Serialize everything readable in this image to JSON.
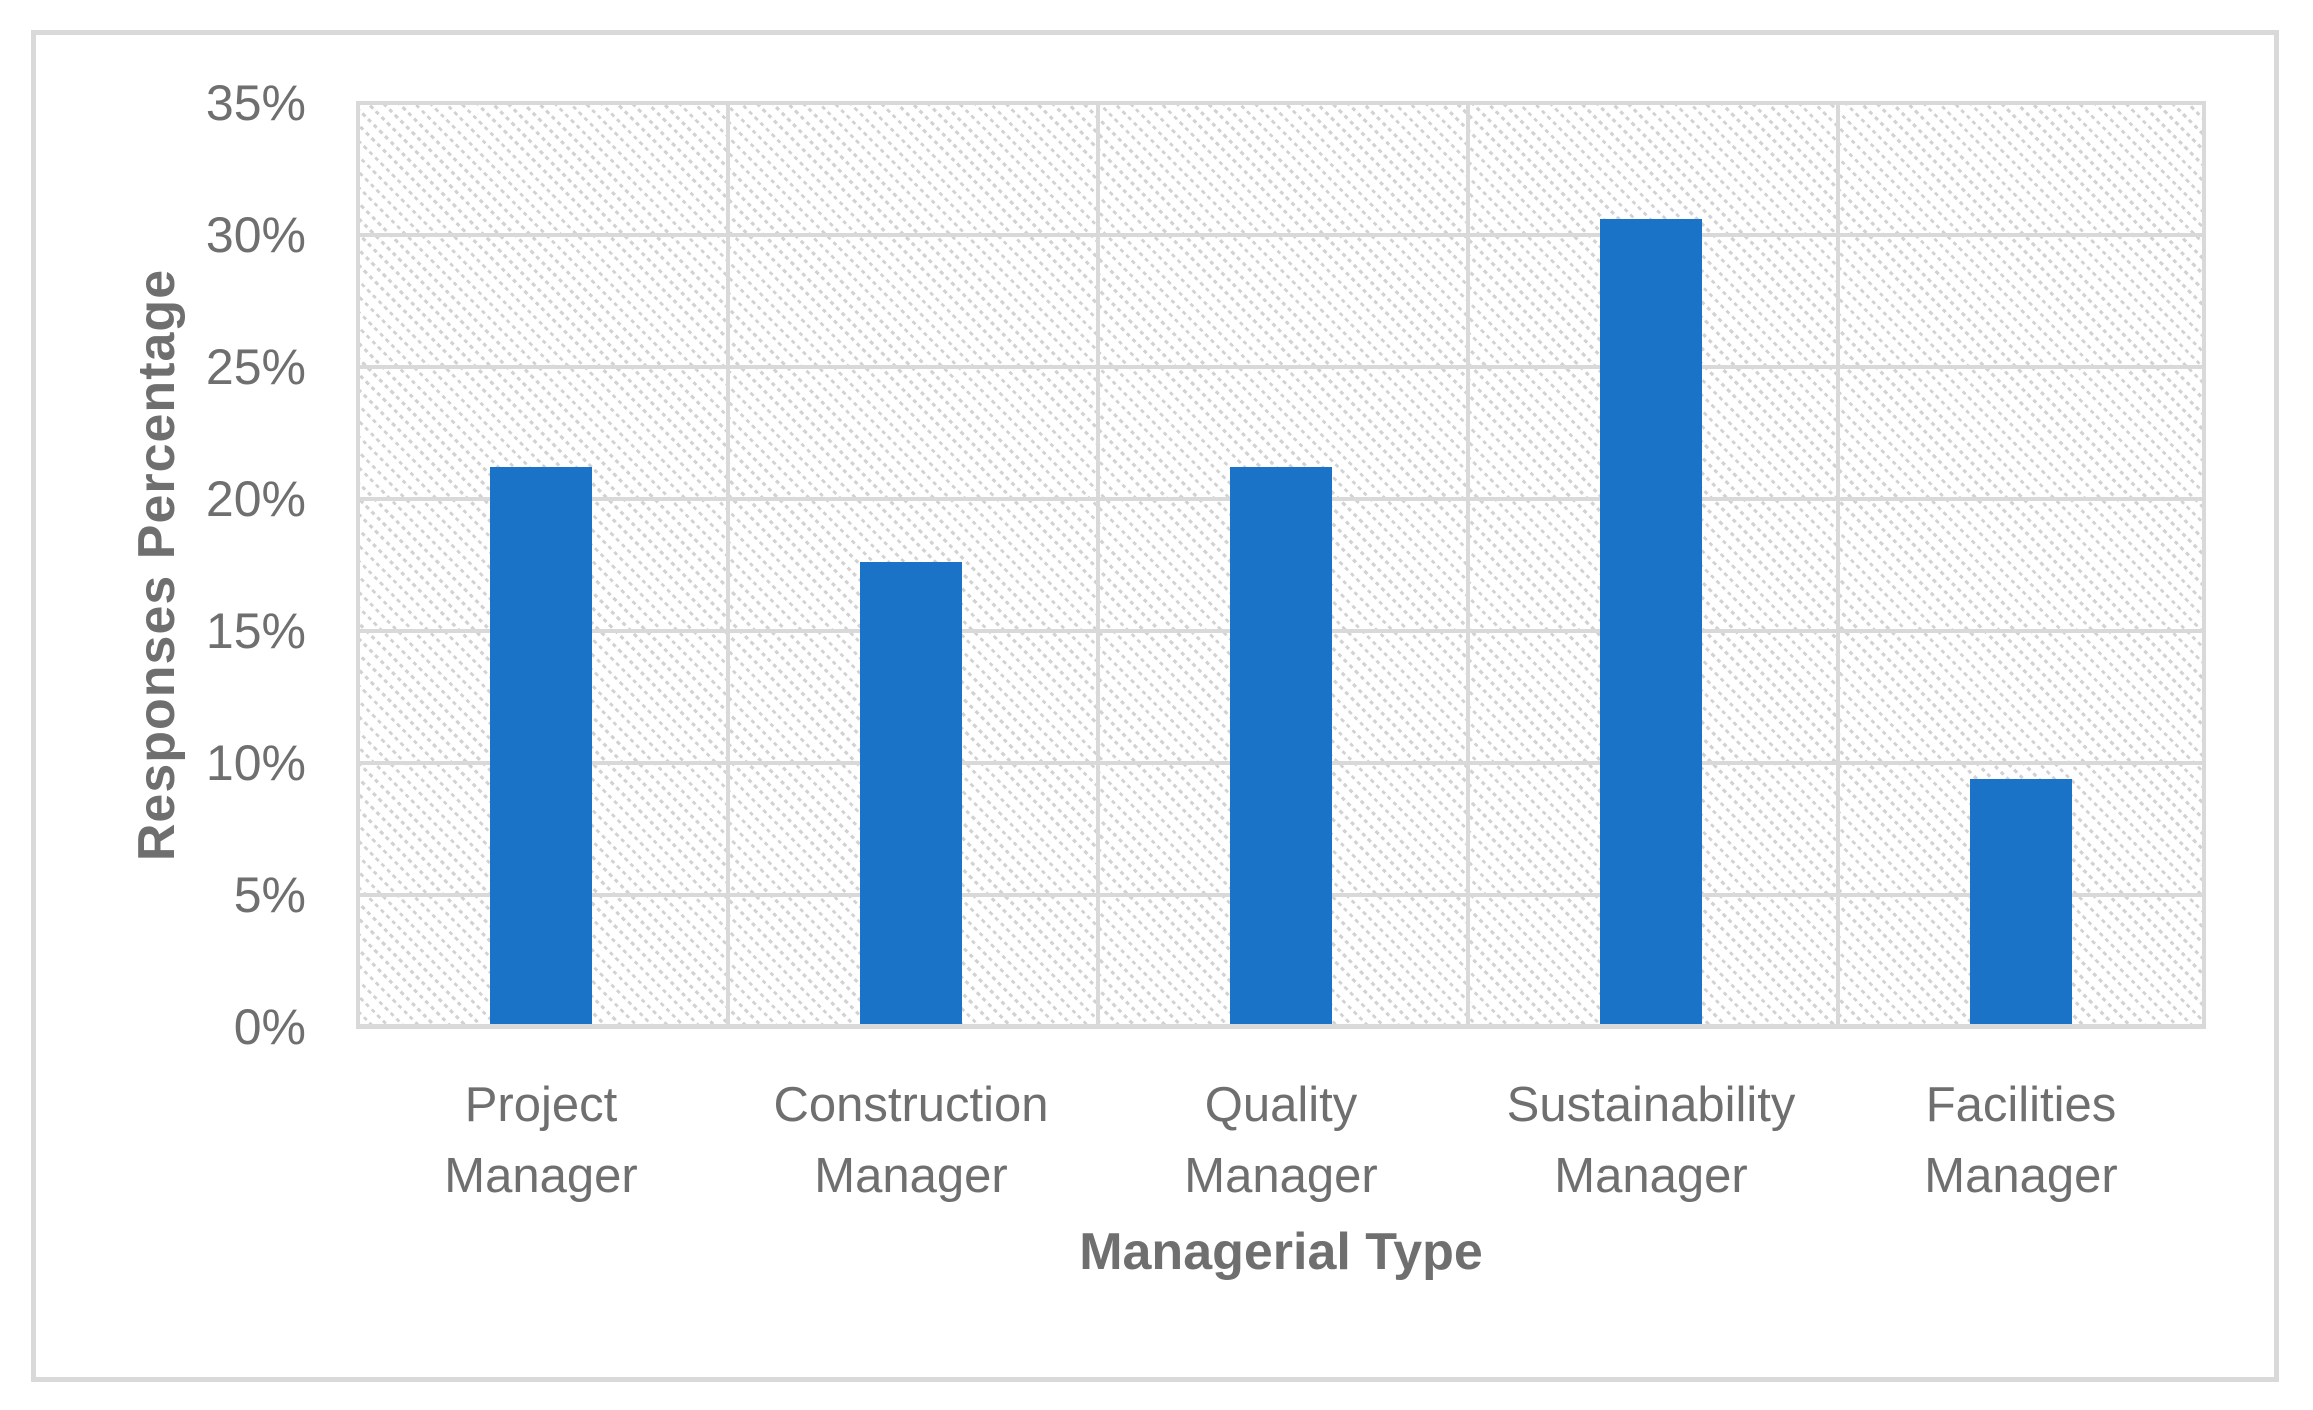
{
  "figure": {
    "background_color": "#ffffff",
    "border_color": "#d9d9d9"
  },
  "chart_data": {
    "type": "bar",
    "title": "",
    "categories": [
      "Project Manager",
      "Construction Manager",
      "Quality Manager",
      "Sustainability Manager",
      "Facilities Manager"
    ],
    "values": [
      21.2,
      17.6,
      21.2,
      30.6,
      9.4
    ],
    "xlabel": "Managerial Type",
    "ylabel": "Responses Percentage",
    "ylim": [
      0,
      35
    ],
    "ytick_step": 5,
    "ytick_labels": [
      "0%",
      "5%",
      "10%",
      "15%",
      "20%",
      "25%",
      "30%",
      "35%"
    ],
    "grid": true,
    "legend_position": "none",
    "bar_color": "#1b73c7",
    "gridline_color": "#d9d9d9",
    "text_color": "#6f6f6f",
    "plot_background_pattern": "light-downward-diagonal-hatch"
  }
}
